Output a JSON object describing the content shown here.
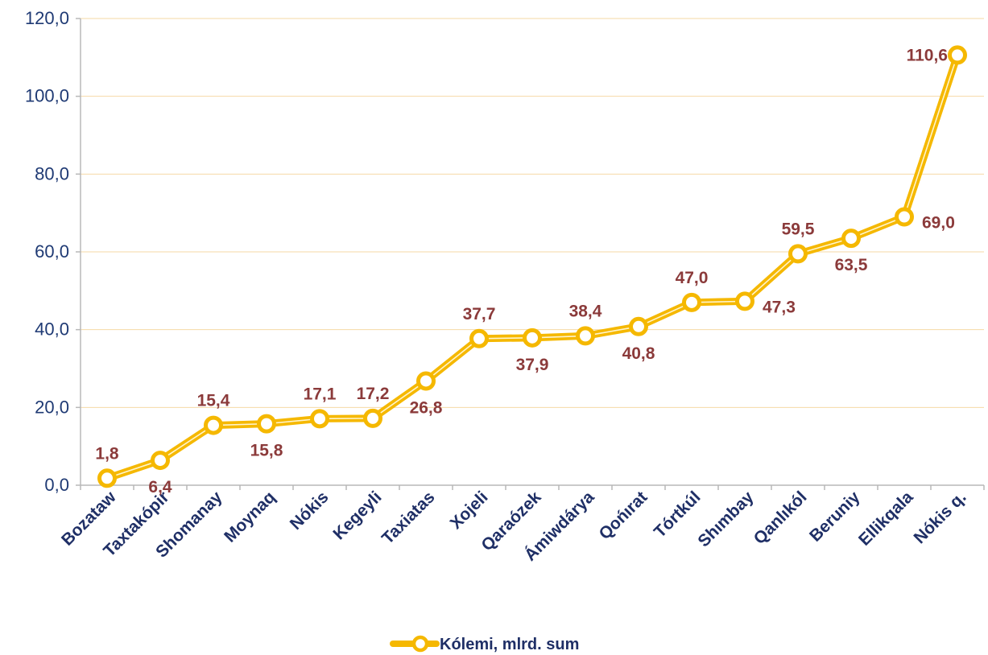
{
  "chart_data": {
    "type": "line",
    "categories": [
      "Bozataw",
      "Taxtakópir",
      "Shomanay",
      "Moynaq",
      "Nókis",
      "Kegeyli",
      "Taxiatas",
      "Xojeli",
      "Qaraózek",
      "Ámiwdárya",
      "Qońırat",
      "Tórtkúl",
      "Shımbay",
      "Qanlıkól",
      "Beruniy",
      "Ellikqala",
      "Nókis q."
    ],
    "series": [
      {
        "name": "Kólemi, mlrd. sum",
        "values": [
          1.8,
          6.4,
          15.4,
          15.8,
          17.1,
          17.2,
          26.8,
          37.7,
          37.9,
          38.4,
          40.8,
          47.0,
          47.3,
          59.5,
          63.5,
          69.0,
          110.6
        ],
        "labels": [
          "1,8",
          "6,4",
          "15,4",
          "15,8",
          "17,1",
          "17,2",
          "26,8",
          "37,7",
          "37,9",
          "38,4",
          "40,8",
          "47,0",
          "47,3",
          "59,5",
          "63,5",
          "69,0",
          "110,6"
        ],
        "color": "#f5b800"
      }
    ],
    "ylim": [
      0,
      120
    ],
    "yticks": [
      0,
      20,
      40,
      60,
      80,
      100,
      120
    ],
    "ytick_labels": [
      "0,0",
      "20,0",
      "40,0",
      "60,0",
      "80,0",
      "100,0",
      "120,0"
    ],
    "grid": true,
    "grid_color": "#f6d9a6",
    "axis_color": "#b8b8b8",
    "ytick_color": "#1f3a74",
    "xtick_color": "#1f2f66",
    "label_color": "#8b3a3a",
    "legend_position": "bottom-center",
    "xlabel": "",
    "ylabel": "",
    "title": ""
  }
}
